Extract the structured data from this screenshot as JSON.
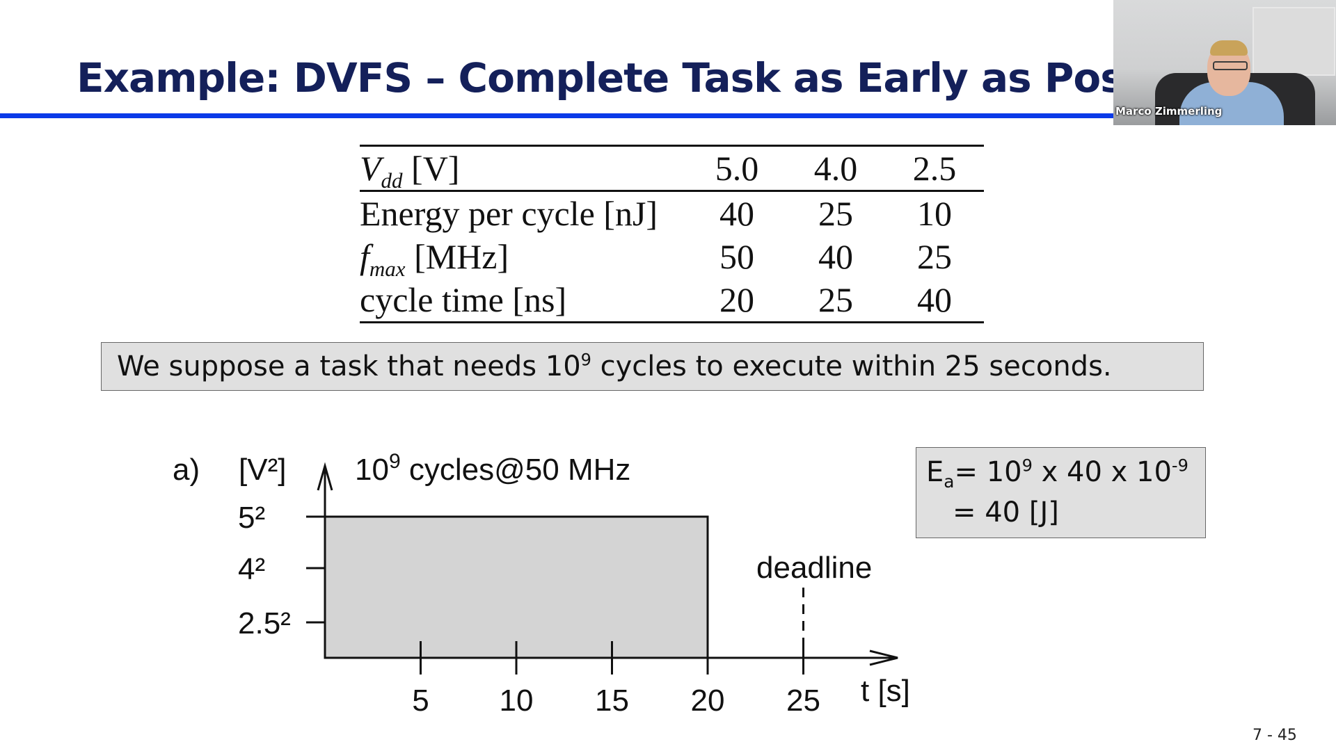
{
  "slide": {
    "title": "Example: DVFS – Complete Task as Early as Possib",
    "page_number": "7 - 45"
  },
  "webcam": {
    "participant_name": "Marco Zimmerling"
  },
  "table": {
    "header": {
      "label_italic": "V",
      "label_sub": "dd",
      "label_unit": " [V]",
      "values": [
        "5.0",
        "4.0",
        "2.5"
      ]
    },
    "rows": [
      {
        "label": "Energy per cycle [nJ]",
        "values": [
          "40",
          "25",
          "10"
        ]
      },
      {
        "label_italic": "f",
        "label_sub": "max",
        "label_unit": " [MHz]",
        "values": [
          "50",
          "40",
          "25"
        ]
      },
      {
        "label": "cycle time [ns]",
        "values": [
          "20",
          "25",
          "40"
        ]
      }
    ]
  },
  "assumption": {
    "text_before": "We suppose a task that needs 10",
    "exponent": "9",
    "text_after": " cycles to execute within 25 seconds."
  },
  "energy_calc": {
    "line1_prefix": "E",
    "line1_sub": "a",
    "line1_mid": "= 10",
    "line1_exp1": "9",
    "line1_rest": " x 40 x 10",
    "line1_exp2": "-9",
    "line2": "= 40 [J]"
  },
  "chart_data": {
    "type": "area",
    "panel_label": "a)",
    "ylabel": "[V²]",
    "xlabel": "t [s]",
    "annotation_base": "10",
    "annotation_exp": "9",
    "annotation_rest": " cycles@50 MHz",
    "deadline_label": "deadline",
    "deadline_x": 25,
    "xlim": [
      0,
      27.5
    ],
    "y_ticks": [
      {
        "label": "5²",
        "value": 25
      },
      {
        "label": "4²",
        "value": 16
      },
      {
        "label": "2.5²",
        "value": 6.25
      }
    ],
    "x_ticks": [
      5,
      10,
      15,
      20,
      25
    ],
    "x_tick_labels": [
      "5",
      "10",
      "15",
      "20",
      "25"
    ],
    "series": [
      {
        "x_start": 0,
        "x_end": 20,
        "y": 25
      }
    ],
    "fill_color": "#d4d4d4"
  }
}
